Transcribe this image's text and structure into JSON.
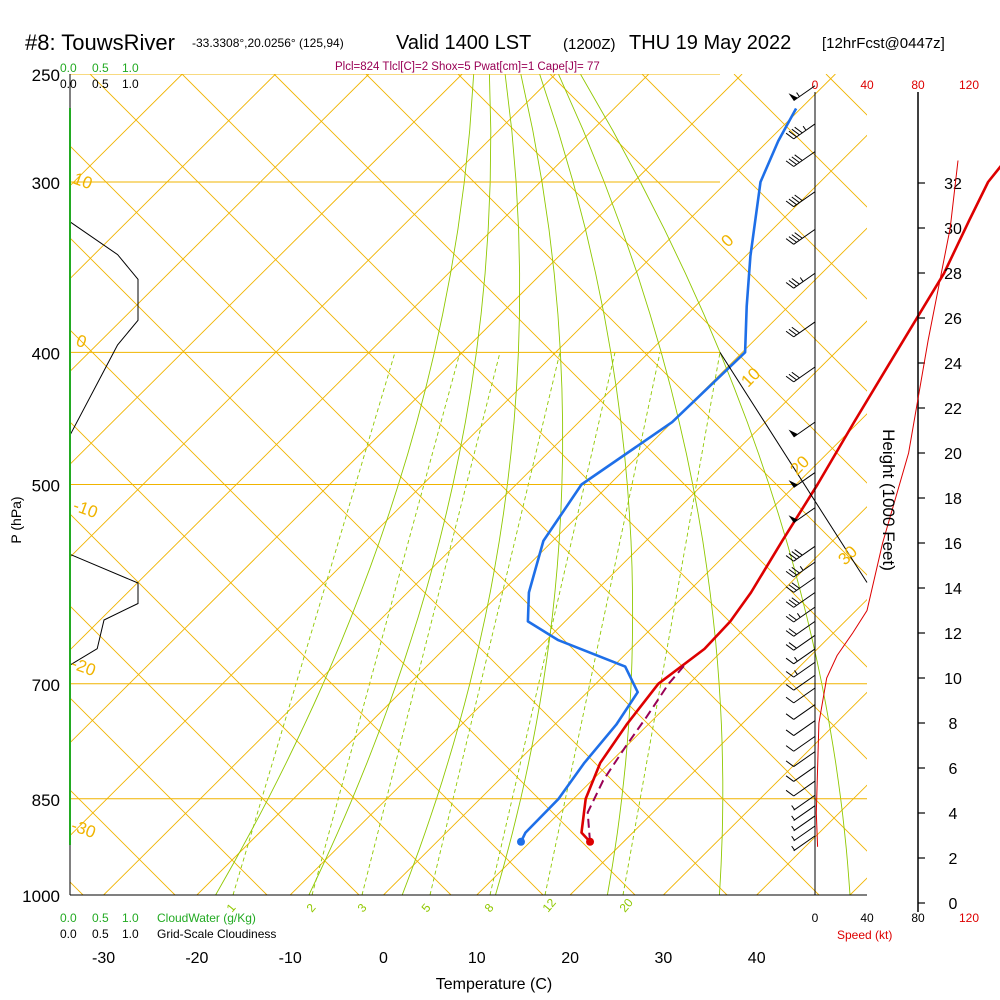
{
  "header": {
    "station": "#8: TouwsRiver",
    "coords": "-33.3308°,20.0256° (125,94)",
    "valid": "Valid 1400 LST",
    "utc": "(1200Z)",
    "date": "THU 19 May 2022",
    "fcst": "[12hrFcst@0447z]",
    "indices": "Plcl=824 Tlcl[C]=2 Shox=5 Pwat[cm]=1 Cape[J]= 77"
  },
  "colors": {
    "temperature": "#dd0000",
    "dewpoint": "#1e6fe8",
    "parcel": "#990055",
    "isotherm": "#f0b400",
    "mixing_ratio": "#90c800",
    "cloud": "#22aa22",
    "wind_speed": "#dd0000"
  },
  "labels": {
    "xlabel": "Temperature (C)",
    "ylabel": "P (hPa)",
    "height_label": "Height (1000 Feet)",
    "speed_label": "Speed (kt)",
    "cloudwater_label": "CloudWater (g/Kg)",
    "cloudiness_label": "Grid-Scale Cloudiness"
  },
  "scales": {
    "cloud_top_green": [
      "0.0",
      "0.5",
      "1.0"
    ],
    "cloud_top_black": [
      "0.0",
      "0.5",
      "1.0"
    ],
    "cloud_bottom_green": [
      "0.0",
      "0.5",
      "1.0"
    ],
    "cloud_bottom_black": [
      "0.0",
      "0.5",
      "1.0"
    ],
    "speed_top": [
      "0",
      "40",
      "80",
      "120"
    ],
    "speed_bottom": [
      "0",
      "40",
      "80",
      "120"
    ]
  },
  "chart_data": {
    "type": "skew-t",
    "pressure_ticks": [
      250,
      300,
      400,
      500,
      700,
      850,
      1000
    ],
    "temp_ticks": [
      -30,
      -20,
      -10,
      0,
      10,
      20,
      30,
      40
    ],
    "height_ticks": [
      0,
      2,
      4,
      6,
      8,
      10,
      12,
      14,
      16,
      18,
      20,
      22,
      24,
      26,
      28,
      30,
      32
    ],
    "isotherm_labels": [
      "10",
      "0",
      "-10",
      "-20",
      "-30",
      "0",
      "10",
      "20",
      "30"
    ],
    "mixing_ratio_labels": [
      "1",
      "2",
      "3",
      "5",
      "8",
      "12",
      "20"
    ],
    "temperature": [
      {
        "p": 914,
        "t": 16.4
      },
      {
        "p": 900,
        "t": 14.5
      },
      {
        "p": 850,
        "t": 11.3
      },
      {
        "p": 800,
        "t": 9.0
      },
      {
        "p": 750,
        "t": 7.7
      },
      {
        "p": 700,
        "t": 6.7
      },
      {
        "p": 660,
        "t": 7.9
      },
      {
        "p": 630,
        "t": 7.7
      },
      {
        "p": 600,
        "t": 6.8
      },
      {
        "p": 550,
        "t": 4.6
      },
      {
        "p": 500,
        "t": 2.3
      },
      {
        "p": 450,
        "t": -0.5
      },
      {
        "p": 400,
        "t": -3.5
      },
      {
        "p": 350,
        "t": -6.9
      },
      {
        "p": 320,
        "t": -9.9
      },
      {
        "p": 300,
        "t": -12.0
      },
      {
        "p": 280,
        "t": -12.9
      },
      {
        "p": 265,
        "t": -12.5
      }
    ],
    "dewpoint": [
      {
        "p": 914,
        "t": 9.0
      },
      {
        "p": 900,
        "t": 8.5
      },
      {
        "p": 850,
        "t": 8.4
      },
      {
        "p": 800,
        "t": 7.3
      },
      {
        "p": 750,
        "t": 6.6
      },
      {
        "p": 710,
        "t": 5.4
      },
      {
        "p": 680,
        "t": 1.3
      },
      {
        "p": 650,
        "t": -8.8
      },
      {
        "p": 630,
        "t": -14.0
      },
      {
        "p": 600,
        "t": -17.0
      },
      {
        "p": 550,
        "t": -21.0
      },
      {
        "p": 500,
        "t": -23.0
      },
      {
        "p": 450,
        "t": -20.0
      },
      {
        "p": 400,
        "t": -19.7
      },
      {
        "p": 370,
        "t": -24.5
      },
      {
        "p": 340,
        "t": -29.5
      },
      {
        "p": 300,
        "t": -36.4
      },
      {
        "p": 280,
        "t": -38.9
      },
      {
        "p": 265,
        "t": -40.5
      }
    ],
    "parcel": [
      {
        "p": 914,
        "t": 16.4
      },
      {
        "p": 870,
        "t": 13.0
      },
      {
        "p": 824,
        "t": 11.2
      },
      {
        "p": 780,
        "t": 10.0
      },
      {
        "p": 740,
        "t": 9.0
      },
      {
        "p": 700,
        "t": 7.8
      },
      {
        "p": 678,
        "t": 7.5
      }
    ],
    "surface": {
      "p": 914,
      "t": 16.4,
      "td": 9.0
    },
    "wind_speed_profile": [
      {
        "z": 2.5,
        "kt": 2
      },
      {
        "z": 4,
        "kt": 1
      },
      {
        "z": 6,
        "kt": 2
      },
      {
        "z": 8,
        "kt": 3
      },
      {
        "z": 10,
        "kt": 9
      },
      {
        "z": 11,
        "kt": 17
      },
      {
        "z": 12,
        "kt": 29
      },
      {
        "z": 13,
        "kt": 40
      },
      {
        "z": 16,
        "kt": 52
      },
      {
        "z": 20,
        "kt": 72
      },
      {
        "z": 25,
        "kt": 87
      },
      {
        "z": 30,
        "kt": 104
      },
      {
        "z": 33,
        "kt": 110
      }
    ],
    "wind_barbs": [
      {
        "p": 255,
        "kt": 55
      },
      {
        "p": 272,
        "kt": 45
      },
      {
        "p": 285,
        "kt": 40
      },
      {
        "p": 305,
        "kt": 40
      },
      {
        "p": 325,
        "kt": 40
      },
      {
        "p": 350,
        "kt": 35
      },
      {
        "p": 380,
        "kt": 30
      },
      {
        "p": 410,
        "kt": 30
      },
      {
        "p": 450,
        "kt": 50
      },
      {
        "p": 490,
        "kt": 50
      },
      {
        "p": 520,
        "kt": 50
      },
      {
        "p": 555,
        "kt": 40
      },
      {
        "p": 570,
        "kt": 35
      },
      {
        "p": 585,
        "kt": 30
      },
      {
        "p": 600,
        "kt": 30
      },
      {
        "p": 615,
        "kt": 25
      },
      {
        "p": 630,
        "kt": 20
      },
      {
        "p": 645,
        "kt": 20
      },
      {
        "p": 660,
        "kt": 15
      },
      {
        "p": 675,
        "kt": 15
      },
      {
        "p": 690,
        "kt": 10
      },
      {
        "p": 705,
        "kt": 10
      },
      {
        "p": 725,
        "kt": 10
      },
      {
        "p": 745,
        "kt": 10
      },
      {
        "p": 765,
        "kt": 10
      },
      {
        "p": 785,
        "kt": 10
      },
      {
        "p": 805,
        "kt": 10
      },
      {
        "p": 825,
        "kt": 10
      },
      {
        "p": 845,
        "kt": 5
      },
      {
        "p": 860,
        "kt": 5
      },
      {
        "p": 875,
        "kt": 5
      },
      {
        "p": 890,
        "kt": 5
      },
      {
        "p": 905,
        "kt": 5
      }
    ],
    "cloud_outline_upper": [
      [
        0,
        0.44
      ],
      [
        0.7,
        0.33
      ],
      [
        1.0,
        0.3
      ],
      [
        1.0,
        0.25
      ],
      [
        0.7,
        0.22
      ],
      [
        0,
        0.18
      ]
    ],
    "cloud_outline_lower": [
      [
        0,
        0.72
      ],
      [
        0.4,
        0.7
      ],
      [
        0.5,
        0.665
      ],
      [
        1.0,
        0.645
      ],
      [
        1.0,
        0.62
      ],
      [
        0,
        0.585
      ]
    ]
  }
}
